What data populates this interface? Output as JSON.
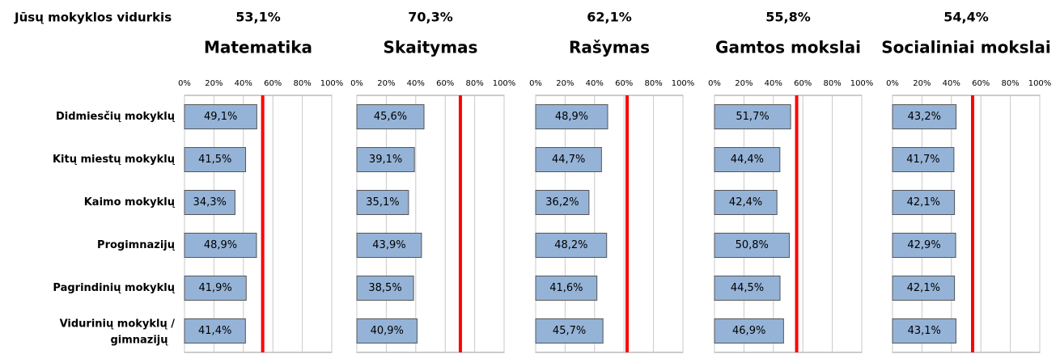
{
  "average_caption": "Jūsų mokyklos vidurkis",
  "categories": [
    "Didmiesčių mokyklų",
    "Kitų miestų mokyklų",
    "Kaimo mokyklų",
    "Progimnazijų",
    "Pagrindinių mokyklų",
    "Vidurinių mokyklų / gimnazijų"
  ],
  "chart_data": [
    {
      "type": "bar",
      "orientation": "horizontal",
      "title": "Matematika",
      "average": 53.1,
      "average_label": "53,1%",
      "average_color": "#ff0000",
      "values": [
        49.1,
        41.5,
        34.3,
        48.9,
        41.9,
        41.4
      ],
      "value_labels": [
        "49,1%",
        "41,5%",
        "34,3%",
        "48,9%",
        "41,9%",
        "41,4%"
      ],
      "color": "#95b3d7",
      "xlim": [
        0,
        100
      ],
      "xticks": [
        {
          "value": 0,
          "label": "0%"
        },
        {
          "value": 20,
          "label": "20%"
        },
        {
          "value": 40,
          "label": "40%"
        },
        {
          "value": 60,
          "label": "60%"
        },
        {
          "value": 80,
          "label": "80%"
        },
        {
          "value": 100,
          "label": "100%"
        }
      ],
      "grid": true
    },
    {
      "type": "bar",
      "orientation": "horizontal",
      "title": "Skaitymas",
      "average": 70.3,
      "average_label": "70,3%",
      "average_color": "#ff0000",
      "values": [
        45.6,
        39.1,
        35.1,
        43.9,
        38.5,
        40.9
      ],
      "value_labels": [
        "45,6%",
        "39,1%",
        "35,1%",
        "43,9%",
        "38,5%",
        "40,9%"
      ],
      "color": "#95b3d7",
      "xlim": [
        0,
        100
      ],
      "xticks": [
        {
          "value": 0,
          "label": "0%"
        },
        {
          "value": 20,
          "label": "20%"
        },
        {
          "value": 40,
          "label": "40%"
        },
        {
          "value": 60,
          "label": "60%"
        },
        {
          "value": 80,
          "label": "80%"
        },
        {
          "value": 100,
          "label": "100%"
        }
      ],
      "grid": true
    },
    {
      "type": "bar",
      "orientation": "horizontal",
      "title": "Rašymas",
      "average": 62.1,
      "average_label": "62,1%",
      "average_color": "#ff0000",
      "values": [
        48.9,
        44.7,
        36.2,
        48.2,
        41.6,
        45.7
      ],
      "value_labels": [
        "48,9%",
        "44,7%",
        "36,2%",
        "48,2%",
        "41,6%",
        "45,7%"
      ],
      "color": "#95b3d7",
      "xlim": [
        0,
        100
      ],
      "xticks": [
        {
          "value": 0,
          "label": "0%"
        },
        {
          "value": 20,
          "label": "20%"
        },
        {
          "value": 40,
          "label": "40%"
        },
        {
          "value": 60,
          "label": "60%"
        },
        {
          "value": 80,
          "label": "80%"
        },
        {
          "value": 100,
          "label": "100%"
        }
      ],
      "grid": true
    },
    {
      "type": "bar",
      "orientation": "horizontal",
      "title": "Gamtos mokslai",
      "average": 55.8,
      "average_label": "55,8%",
      "average_color": "#ff0000",
      "values": [
        51.7,
        44.4,
        42.4,
        50.8,
        44.5,
        46.9
      ],
      "value_labels": [
        "51,7%",
        "44,4%",
        "42,4%",
        "50,8%",
        "44,5%",
        "46,9%"
      ],
      "color": "#95b3d7",
      "xlim": [
        0,
        100
      ],
      "xticks": [
        {
          "value": 0,
          "label": "0%"
        },
        {
          "value": 20,
          "label": "20%"
        },
        {
          "value": 40,
          "label": "40%"
        },
        {
          "value": 60,
          "label": "60%"
        },
        {
          "value": 80,
          "label": "80%"
        },
        {
          "value": 100,
          "label": "100%"
        }
      ],
      "grid": true
    },
    {
      "type": "bar",
      "orientation": "horizontal",
      "title": "Socialiniai mokslai",
      "average": 54.4,
      "average_label": "54,4%",
      "average_color": "#ff0000",
      "values": [
        43.2,
        41.7,
        42.1,
        42.9,
        42.1,
        43.1
      ],
      "value_labels": [
        "43,2%",
        "41,7%",
        "42,1%",
        "42,9%",
        "42,1%",
        "43,1%"
      ],
      "color": "#95b3d7",
      "xlim": [
        0,
        100
      ],
      "xticks": [
        {
          "value": 0,
          "label": "0%"
        },
        {
          "value": 20,
          "label": "20%"
        },
        {
          "value": 40,
          "label": "40%"
        },
        {
          "value": 60,
          "label": "60%"
        },
        {
          "value": 80,
          "label": "80%"
        },
        {
          "value": 100,
          "label": "100%"
        }
      ],
      "grid": true
    }
  ]
}
